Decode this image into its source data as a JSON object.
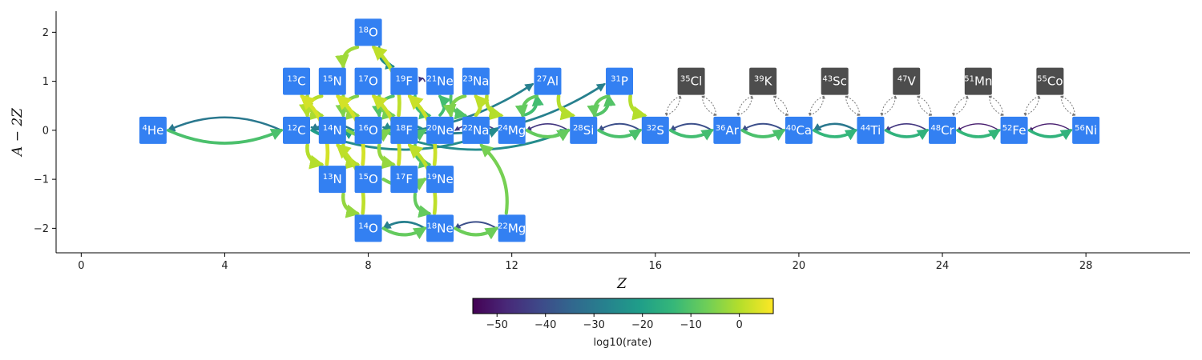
{
  "chart_data": {
    "type": "network",
    "xlabel": "Z",
    "ylabel": "A − 2Z",
    "xlim": [
      -0.7,
      30.9
    ],
    "ylim": [
      -2.5,
      2.43
    ],
    "xticks": [
      "0",
      "4",
      "8",
      "12",
      "16",
      "20",
      "24",
      "28"
    ],
    "yticks": [
      "−2",
      "−1",
      "0",
      "1",
      "2"
    ],
    "active_color": "#3380f2",
    "inactive_color": "#4d4d4d",
    "nodes": [
      {
        "mass": "4",
        "symbol": "He",
        "z": 2,
        "n": 2,
        "active": true
      },
      {
        "mass": "12",
        "symbol": "C",
        "z": 6,
        "n": 6,
        "active": true
      },
      {
        "mass": "13",
        "symbol": "C",
        "z": 6,
        "n": 7,
        "active": true
      },
      {
        "mass": "13",
        "symbol": "N",
        "z": 7,
        "n": 6,
        "active": true
      },
      {
        "mass": "14",
        "symbol": "N",
        "z": 7,
        "n": 7,
        "active": true
      },
      {
        "mass": "15",
        "symbol": "N",
        "z": 7,
        "n": 8,
        "active": true
      },
      {
        "mass": "14",
        "symbol": "O",
        "z": 8,
        "n": 6,
        "active": true
      },
      {
        "mass": "15",
        "symbol": "O",
        "z": 8,
        "n": 7,
        "active": true
      },
      {
        "mass": "16",
        "symbol": "O",
        "z": 8,
        "n": 8,
        "active": true
      },
      {
        "mass": "17",
        "symbol": "O",
        "z": 8,
        "n": 9,
        "active": true
      },
      {
        "mass": "18",
        "symbol": "O",
        "z": 8,
        "n": 10,
        "active": true
      },
      {
        "mass": "17",
        "symbol": "F",
        "z": 9,
        "n": 8,
        "active": true
      },
      {
        "mass": "18",
        "symbol": "F",
        "z": 9,
        "n": 9,
        "active": true
      },
      {
        "mass": "19",
        "symbol": "F",
        "z": 9,
        "n": 10,
        "active": true
      },
      {
        "mass": "18",
        "symbol": "Ne",
        "z": 10,
        "n": 8,
        "active": true
      },
      {
        "mass": "19",
        "symbol": "Ne",
        "z": 10,
        "n": 9,
        "active": true
      },
      {
        "mass": "20",
        "symbol": "Ne",
        "z": 10,
        "n": 10,
        "active": true
      },
      {
        "mass": "21",
        "symbol": "Ne",
        "z": 10,
        "n": 11,
        "active": true
      },
      {
        "mass": "22",
        "symbol": "Na",
        "z": 11,
        "n": 11,
        "active": true
      },
      {
        "mass": "23",
        "symbol": "Na",
        "z": 11,
        "n": 12,
        "active": true
      },
      {
        "mass": "22",
        "symbol": "Mg",
        "z": 12,
        "n": 10,
        "active": true
      },
      {
        "mass": "24",
        "symbol": "Mg",
        "z": 12,
        "n": 12,
        "active": true
      },
      {
        "mass": "27",
        "symbol": "Al",
        "z": 13,
        "n": 14,
        "active": true
      },
      {
        "mass": "28",
        "symbol": "Si",
        "z": 14,
        "n": 14,
        "active": true
      },
      {
        "mass": "31",
        "symbol": "P",
        "z": 15,
        "n": 16,
        "active": true
      },
      {
        "mass": "32",
        "symbol": "S",
        "z": 16,
        "n": 16,
        "active": true
      },
      {
        "mass": "35",
        "symbol": "Cl",
        "z": 17,
        "n": 18,
        "active": false
      },
      {
        "mass": "36",
        "symbol": "Ar",
        "z": 18,
        "n": 18,
        "active": true
      },
      {
        "mass": "39",
        "symbol": "K",
        "z": 19,
        "n": 20,
        "active": false
      },
      {
        "mass": "40",
        "symbol": "Ca",
        "z": 20,
        "n": 20,
        "active": true
      },
      {
        "mass": "43",
        "symbol": "Sc",
        "z": 21,
        "n": 22,
        "active": false
      },
      {
        "mass": "44",
        "symbol": "Ti",
        "z": 22,
        "n": 22,
        "active": true
      },
      {
        "mass": "47",
        "symbol": "V",
        "z": 23,
        "n": 24,
        "active": false
      },
      {
        "mass": "48",
        "symbol": "Cr",
        "z": 24,
        "n": 24,
        "active": true
      },
      {
        "mass": "51",
        "symbol": "Mn",
        "z": 25,
        "n": 26,
        "active": false
      },
      {
        "mass": "52",
        "symbol": "Fe",
        "z": 26,
        "n": 26,
        "active": true
      },
      {
        "mass": "55",
        "symbol": "Co",
        "z": 27,
        "n": 28,
        "active": false
      },
      {
        "mass": "56",
        "symbol": "Ni",
        "z": 28,
        "n": 28,
        "active": true
      }
    ],
    "links": [
      {
        "from": "4He",
        "to": "12C",
        "rate": -11
      },
      {
        "from": "12C",
        "to": "4He",
        "rate": -30
      },
      {
        "from": "12C",
        "to": "13N",
        "rate": 0
      },
      {
        "from": "13N",
        "to": "13C",
        "rate": 3
      },
      {
        "from": "13C",
        "to": "14N",
        "rate": -1
      },
      {
        "from": "14N",
        "to": "15O",
        "rate": 0
      },
      {
        "from": "15O",
        "to": "15N",
        "rate": 3
      },
      {
        "from": "15N",
        "to": "12C",
        "rate": 0
      },
      {
        "from": "15N",
        "to": "16O",
        "rate": -3
      },
      {
        "from": "16O",
        "to": "17F",
        "rate": -3
      },
      {
        "from": "17F",
        "to": "17O",
        "rate": 2
      },
      {
        "from": "17O",
        "to": "14N",
        "rate": -5
      },
      {
        "from": "17O",
        "to": "18F",
        "rate": -6
      },
      {
        "from": "18F",
        "to": "18O",
        "rate": 1
      },
      {
        "from": "18O",
        "to": "15N",
        "rate": -2
      },
      {
        "from": "18O",
        "to": "19F",
        "rate": -25
      },
      {
        "from": "19F",
        "to": "16O",
        "rate": -10
      },
      {
        "from": "19F",
        "to": "20Ne",
        "rate": -12
      },
      {
        "from": "14N",
        "to": "18F",
        "rate": -5
      },
      {
        "from": "18F",
        "to": "19Ne",
        "rate": -10
      },
      {
        "from": "19Ne",
        "to": "19F",
        "rate": 2
      },
      {
        "from": "13N",
        "to": "14O",
        "rate": -3
      },
      {
        "from": "14O",
        "to": "14N",
        "rate": 1
      },
      {
        "from": "14O",
        "to": "18Ne",
        "rate": -8
      },
      {
        "from": "18Ne",
        "to": "14O",
        "rate": -28
      },
      {
        "from": "18Ne",
        "to": "18F",
        "rate": 1
      },
      {
        "from": "18Ne",
        "to": "22Mg",
        "rate": -7
      },
      {
        "from": "22Mg",
        "to": "18Ne",
        "rate": -40
      },
      {
        "from": "22Mg",
        "to": "22Na",
        "rate": -6
      },
      {
        "from": "15O",
        "to": "19Ne",
        "rate": -6
      },
      {
        "from": "17F",
        "to": "18Ne",
        "rate": -8
      },
      {
        "from": "16O",
        "to": "20Ne",
        "rate": -10
      },
      {
        "from": "20Ne",
        "to": "16O",
        "rate": -25
      },
      {
        "from": "20Ne",
        "to": "21Ne",
        "rate": -12
      },
      {
        "from": "21Ne",
        "to": "19F",
        "rate": -45
      },
      {
        "from": "21Ne",
        "to": "22Na",
        "rate": -10
      },
      {
        "from": "22Na",
        "to": "23Na",
        "rate": 1
      },
      {
        "from": "23Na",
        "to": "24Mg",
        "rate": 0
      },
      {
        "from": "23Na",
        "to": "20Ne",
        "rate": -5
      },
      {
        "from": "24Mg",
        "to": "20Ne",
        "rate": -45
      },
      {
        "from": "24Mg",
        "to": "27Al",
        "rate": -12
      },
      {
        "from": "24Mg",
        "to": "28Si",
        "rate": -8
      },
      {
        "from": "27Al",
        "to": "24Mg",
        "rate": -8
      },
      {
        "from": "27Al",
        "to": "28Si",
        "rate": 0
      },
      {
        "from": "28Si",
        "to": "24Mg",
        "rate": -45
      },
      {
        "from": "28Si",
        "to": "31P",
        "rate": -10
      },
      {
        "from": "31P",
        "to": "28Si",
        "rate": -8
      },
      {
        "from": "31P",
        "to": "32S",
        "rate": 0
      },
      {
        "from": "32S",
        "to": "28Si",
        "rate": -40
      },
      {
        "from": "28Si",
        "to": "32S",
        "rate": -11
      },
      {
        "from": "12C",
        "to": "16O",
        "rate": -20
      },
      {
        "from": "16O",
        "to": "12C",
        "rate": -30
      },
      {
        "from": "12C",
        "to": "24Mg",
        "rate": -25
      },
      {
        "from": "16O",
        "to": "28Si",
        "rate": -25
      },
      {
        "from": "16O",
        "to": "31P",
        "rate": -28
      },
      {
        "from": "12C",
        "to": "27Al",
        "rate": -28
      },
      {
        "from": "32S",
        "to": "36Ar",
        "rate": -12
      },
      {
        "from": "36Ar",
        "to": "32S",
        "rate": -40
      },
      {
        "from": "36Ar",
        "to": "40Ca",
        "rate": -11
      },
      {
        "from": "40Ca",
        "to": "36Ar",
        "rate": -40
      },
      {
        "from": "40Ca",
        "to": "44Ti",
        "rate": -14
      },
      {
        "from": "44Ti",
        "to": "40Ca",
        "rate": -30
      },
      {
        "from": "44Ti",
        "to": "48Cr",
        "rate": -15
      },
      {
        "from": "48Cr",
        "to": "44Ti",
        "rate": -45
      },
      {
        "from": "48Cr",
        "to": "52Fe",
        "rate": -14
      },
      {
        "from": "52Fe",
        "to": "48Cr",
        "rate": -50
      },
      {
        "from": "52Fe",
        "to": "56Ni",
        "rate": -15
      },
      {
        "from": "56Ni",
        "to": "52Fe",
        "rate": -50
      }
    ],
    "inactive_links": [
      {
        "from": "32S",
        "to": "35Cl"
      },
      {
        "from": "35Cl",
        "to": "32S"
      },
      {
        "from": "35Cl",
        "to": "36Ar"
      },
      {
        "from": "36Ar",
        "to": "35Cl"
      },
      {
        "from": "36Ar",
        "to": "39K"
      },
      {
        "from": "39K",
        "to": "36Ar"
      },
      {
        "from": "39K",
        "to": "40Ca"
      },
      {
        "from": "40Ca",
        "to": "39K"
      },
      {
        "from": "40Ca",
        "to": "43Sc"
      },
      {
        "from": "43Sc",
        "to": "40Ca"
      },
      {
        "from": "43Sc",
        "to": "44Ti"
      },
      {
        "from": "44Ti",
        "to": "43Sc"
      },
      {
        "from": "44Ti",
        "to": "47V"
      },
      {
        "from": "47V",
        "to": "44Ti"
      },
      {
        "from": "47V",
        "to": "48Cr"
      },
      {
        "from": "48Cr",
        "to": "47V"
      },
      {
        "from": "48Cr",
        "to": "51Mn"
      },
      {
        "from": "51Mn",
        "to": "48Cr"
      },
      {
        "from": "51Mn",
        "to": "52Fe"
      },
      {
        "from": "52Fe",
        "to": "51Mn"
      },
      {
        "from": "52Fe",
        "to": "55Co"
      },
      {
        "from": "55Co",
        "to": "52Fe"
      },
      {
        "from": "55Co",
        "to": "56Ni"
      },
      {
        "from": "56Ni",
        "to": "55Co"
      }
    ],
    "colorbar": {
      "label": "log10(rate)",
      "min": -55,
      "max": 7,
      "ticks": [
        "−50",
        "−40",
        "−30",
        "−20",
        "−10",
        "0"
      ],
      "colors": [
        "#440154",
        "#482878",
        "#3e4989",
        "#31688e",
        "#26828e",
        "#1f9e89",
        "#35b779",
        "#6ece58",
        "#b5de2b",
        "#fde725"
      ]
    }
  }
}
